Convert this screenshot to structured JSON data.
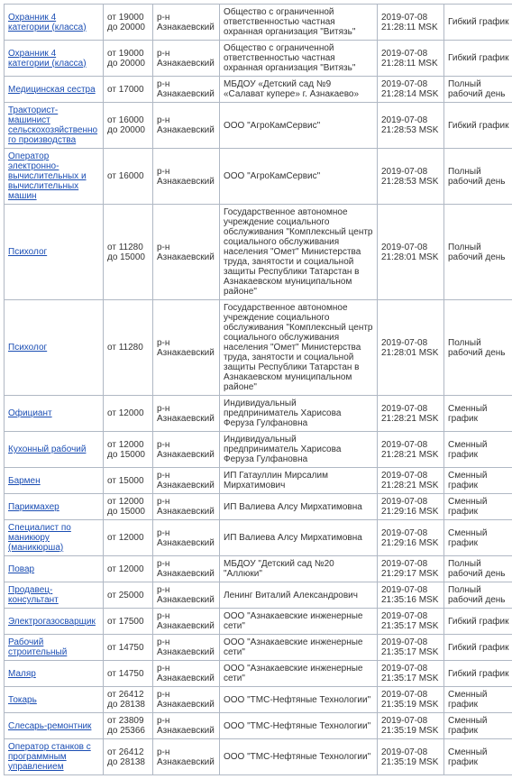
{
  "columns": {
    "title_width": 110,
    "salary_width": 55,
    "region_width": 74,
    "org_width": 175,
    "date_width": 74,
    "schedule_width": 80
  },
  "colors": {
    "border": "#b0b8c4",
    "link": "#1a4db3",
    "text": "#333333",
    "background": "#ffffff"
  },
  "font_size": 10,
  "rows": [
    {
      "title": "Охранник 4 категории (класса)",
      "salary": "от 19000\nдо 20000",
      "region": "р-н Азнакаевский",
      "org": "Общество с ограниченной ответственностью частная охранная организация \"Витязь\"",
      "date": "2019-07-08 21:28:11 MSK",
      "schedule": "Гибкий график"
    },
    {
      "title": "Охранник 4 категории (класса)",
      "salary": "от 19000\nдо 20000",
      "region": "р-н Азнакаевский",
      "org": "Общество с ограниченной ответственностью частная охранная организация \"Витязь\"",
      "date": "2019-07-08 21:28:11 MSK",
      "schedule": "Гибкий график"
    },
    {
      "title": "Медицинская сестра",
      "salary": "от 17000",
      "region": "р-н Азнакаевский",
      "org": "МБДОУ «Детский сад №9 «Салават купере» г. Азнакаево»",
      "date": "2019-07-08 21:28:14 MSK",
      "schedule": "Полный рабочий день"
    },
    {
      "title": "Тракторист-машинист сельскохозяйственного производства",
      "salary": "от 16000\nдо 20000",
      "region": "р-н Азнакаевский",
      "org": "ООО \"АгроКамСервис\"",
      "date": "2019-07-08 21:28:53 MSK",
      "schedule": "Гибкий график"
    },
    {
      "title": "Оператор электронно-вычислительных и вычислительных машин",
      "salary": "от 16000",
      "region": "р-н Азнакаевский",
      "org": "ООО \"АгроКамСервис\"",
      "date": "2019-07-08 21:28:53 MSK",
      "schedule": "Полный рабочий день"
    },
    {
      "title": "Психолог",
      "salary": "от 11280\nдо 15000",
      "region": "р-н Азнакаевский",
      "org": "Государственное автономное учреждение социального обслуживания \"Комплексный центр социального обслуживания населения \"Омет\" Министерства труда, занятости и социальной защиты Республики Татарстан в Азнакаевском муниципальном районе\"",
      "date": "2019-07-08 21:28:01 MSK",
      "schedule": "Полный рабочий день"
    },
    {
      "title": "Психолог",
      "salary": "от 11280",
      "region": "р-н Азнакаевский",
      "org": "Государственное автономное учреждение социального обслуживания \"Комплексный центр социального обслуживания населения \"Омет\" Министерства труда, занятости и социальной защиты Республики Татарстан в Азнакаевском муниципальном районе\"",
      "date": "2019-07-08 21:28:01 MSK",
      "schedule": "Полный рабочий день"
    },
    {
      "title": "Официант",
      "salary": "от 12000",
      "region": "р-н Азнакаевский",
      "org": "Индивидуальный предприниматель Харисова Феруза Гулфановна",
      "date": "2019-07-08 21:28:21 MSK",
      "schedule": "Сменный график"
    },
    {
      "title": "Кухонный рабочий",
      "salary": "от 12000\nдо 15000",
      "region": "р-н Азнакаевский",
      "org": "Индивидуальный предприниматель Харисова Феруза Гулфановна",
      "date": "2019-07-08 21:28:21 MSK",
      "schedule": "Сменный график"
    },
    {
      "title": "Бармен",
      "salary": "от 15000",
      "region": "р-н Азнакаевский",
      "org": "ИП Гатауллин Мирсалим Мирхатимович",
      "date": "2019-07-08 21:28:21 MSK",
      "schedule": "Сменный график"
    },
    {
      "title": "Парикмахер",
      "salary": "от 12000\nдо 15000",
      "region": "р-н Азнакаевский",
      "org": "ИП Валиева Алсу Мирхатимовна",
      "date": "2019-07-08 21:29:16 MSK",
      "schedule": "Сменный график"
    },
    {
      "title": "Специалист по маникюру (маникюрша)",
      "salary": "от 12000",
      "region": "р-н Азнакаевский",
      "org": "ИП Валиева Алсу Мирхатимовна",
      "date": "2019-07-08 21:29:16 MSK",
      "schedule": "Сменный график"
    },
    {
      "title": "Повар",
      "salary": "от 12000",
      "region": "р-н Азнакаевский",
      "org": "МБДОУ \"Детский сад №20 \"Аллюки\"",
      "date": "2019-07-08 21:29:17 MSK",
      "schedule": "Полный рабочий день"
    },
    {
      "title": "Продавец-консультант",
      "salary": "от 25000",
      "region": "р-н Азнакаевский",
      "org": "Ленинг Виталий Александрович",
      "date": "2019-07-08 21:35:16 MSK",
      "schedule": "Полный рабочий день"
    },
    {
      "title": "Электрогазосварщик",
      "salary": "от 17500",
      "region": "р-н Азнакаевский",
      "org": "ООО \"Азнакаевские инженерные сети\"",
      "date": "2019-07-08 21:35:17 MSK",
      "schedule": "Гибкий график"
    },
    {
      "title": "Рабочий строительный",
      "salary": "от 14750",
      "region": "р-н Азнакаевский",
      "org": "ООО \"Азнакаевские инженерные сети\"",
      "date": "2019-07-08 21:35:17 MSK",
      "schedule": "Гибкий график"
    },
    {
      "title": "Маляр",
      "salary": "от 14750",
      "region": "р-н Азнакаевский",
      "org": "ООО \"Азнакаевские инженерные сети\"",
      "date": "2019-07-08 21:35:17 MSK",
      "schedule": "Гибкий график"
    },
    {
      "title": "Токарь",
      "salary": "от 26412\nдо 28138",
      "region": "р-н Азнакаевский",
      "org": "ООО \"ТМС-Нефтяные Технологии\"",
      "date": "2019-07-08 21:35:19 MSK",
      "schedule": "Сменный график"
    },
    {
      "title": "Слесарь-ремонтник",
      "salary": "от 23809\nдо 25366",
      "region": "р-н Азнакаевский",
      "org": "ООО \"ТМС-Нефтяные Технологии\"",
      "date": "2019-07-08 21:35:19 MSK",
      "schedule": "Сменный график"
    },
    {
      "title": "Оператор станков с программным управлением",
      "salary": "от 26412\nдо 28138",
      "region": "р-н Азнакаевский",
      "org": "ООО \"ТМС-Нефтяные Технологии\"",
      "date": "2019-07-08 21:35:19 MSK",
      "schedule": "Сменный график"
    }
  ]
}
